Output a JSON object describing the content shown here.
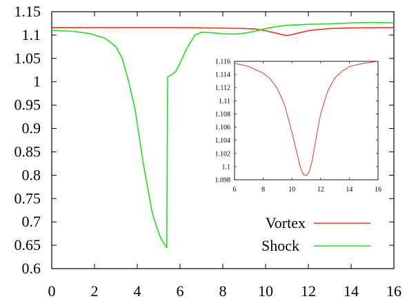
{
  "chart_data": [
    {
      "type": "line",
      "panel": "main",
      "title": "",
      "xlabel": "",
      "ylabel": "",
      "xlim": [
        0,
        16
      ],
      "ylim": [
        0.6,
        1.15
      ],
      "xticks": [
        0,
        2,
        4,
        6,
        8,
        10,
        12,
        14,
        16
      ],
      "yticks": [
        0.6,
        0.65,
        0.7,
        0.75,
        0.8,
        0.85,
        0.9,
        0.95,
        1,
        1.05,
        1.1,
        1.15
      ],
      "ytick_labels": [
        "0.6",
        "0.65",
        "0.7",
        "0.75",
        "0.8",
        "0.85",
        "0.9",
        "0.95",
        "1",
        "1.05",
        "1.1",
        "1.15"
      ],
      "grid": false,
      "legend_position": "bottom-right",
      "series": [
        {
          "name": "Vortex",
          "color": "#e8361c",
          "x": [
            0,
            2,
            4,
            6,
            8,
            9,
            9.5,
            10,
            10.5,
            10.8,
            11,
            11.2,
            11.5,
            12,
            12.5,
            13,
            14,
            15,
            16
          ],
          "y": [
            1.116,
            1.116,
            1.116,
            1.116,
            1.115,
            1.114,
            1.113,
            1.1095,
            1.104,
            1.1005,
            1.099,
            1.1005,
            1.104,
            1.1095,
            1.112,
            1.114,
            1.1152,
            1.1157,
            1.116
          ]
        },
        {
          "name": "Shock",
          "color": "#22dd22",
          "x": [
            0,
            1,
            1.8,
            2.5,
            3,
            3.3,
            3.6,
            3.9,
            4.1,
            4.3,
            4.5,
            4.7,
            4.9,
            5.1,
            5.3,
            5.38,
            5.42,
            5.6,
            5.8,
            6,
            6.3,
            6.7,
            7,
            7.5,
            8,
            8.5,
            9,
            9.5,
            10,
            10.5,
            11,
            12,
            13,
            14,
            15,
            16
          ],
          "y": [
            1.11,
            1.108,
            1.103,
            1.093,
            1.075,
            1.05,
            1.0,
            0.94,
            0.88,
            0.82,
            0.77,
            0.72,
            0.69,
            0.665,
            0.65,
            0.645,
            1.01,
            1.015,
            1.022,
            1.04,
            1.07,
            1.1,
            1.106,
            1.105,
            1.103,
            1.102,
            1.104,
            1.108,
            1.114,
            1.118,
            1.121,
            1.123,
            1.124,
            1.126,
            1.127,
            1.126
          ]
        }
      ]
    },
    {
      "type": "line",
      "panel": "inset",
      "title": "",
      "xlabel": "",
      "ylabel": "",
      "xlim": [
        6,
        16
      ],
      "ylim": [
        1.098,
        1.116
      ],
      "xticks": [
        6,
        8,
        10,
        12,
        14,
        16
      ],
      "yticks": [
        1.098,
        1.1,
        1.102,
        1.104,
        1.106,
        1.108,
        1.11,
        1.112,
        1.114,
        1.116
      ],
      "ytick_labels": [
        "1.098",
        "1.1",
        "1.102",
        "1.104",
        "1.106",
        "1.108",
        "1.11",
        "1.112",
        "1.114",
        "1.116"
      ],
      "grid": false,
      "series": [
        {
          "color": "#e8361c",
          "x": [
            6,
            7,
            8,
            8.5,
            9,
            9.5,
            10,
            10.3,
            10.6,
            10.8,
            11,
            11.2,
            11.4,
            11.7,
            12,
            12.5,
            13,
            13.5,
            14,
            15,
            16
          ],
          "y": [
            1.1157,
            1.1152,
            1.1142,
            1.1133,
            1.1118,
            1.1093,
            1.1052,
            1.1025,
            1.0998,
            1.0988,
            1.0986,
            1.0992,
            1.1008,
            1.1045,
            1.108,
            1.1115,
            1.1135,
            1.1145,
            1.1152,
            1.1157,
            1.116
          ]
        }
      ]
    }
  ]
}
